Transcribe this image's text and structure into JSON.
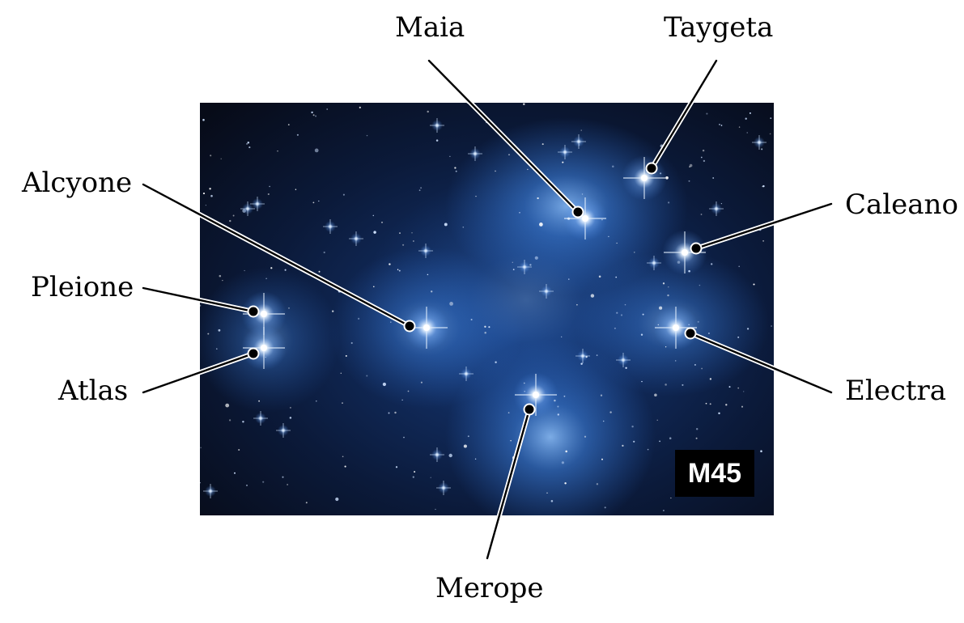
{
  "photo": {
    "badge": "M45"
  },
  "colors": {
    "sky_dark": "#070b18",
    "nebula_blue": "#2f6fd0",
    "leader_line": "#000000",
    "leader_halo": "#ffffff"
  },
  "stars": [
    {
      "key": "maia",
      "label": "Maia"
    },
    {
      "key": "taygeta",
      "label": "Taygeta"
    },
    {
      "key": "alcyone",
      "label": "Alcyone"
    },
    {
      "key": "caleano",
      "label": "Caleano"
    },
    {
      "key": "pleione",
      "label": "Pleione"
    },
    {
      "key": "atlas",
      "label": "Atlas"
    },
    {
      "key": "electra",
      "label": "Electra"
    },
    {
      "key": "merope",
      "label": "Merope"
    }
  ]
}
